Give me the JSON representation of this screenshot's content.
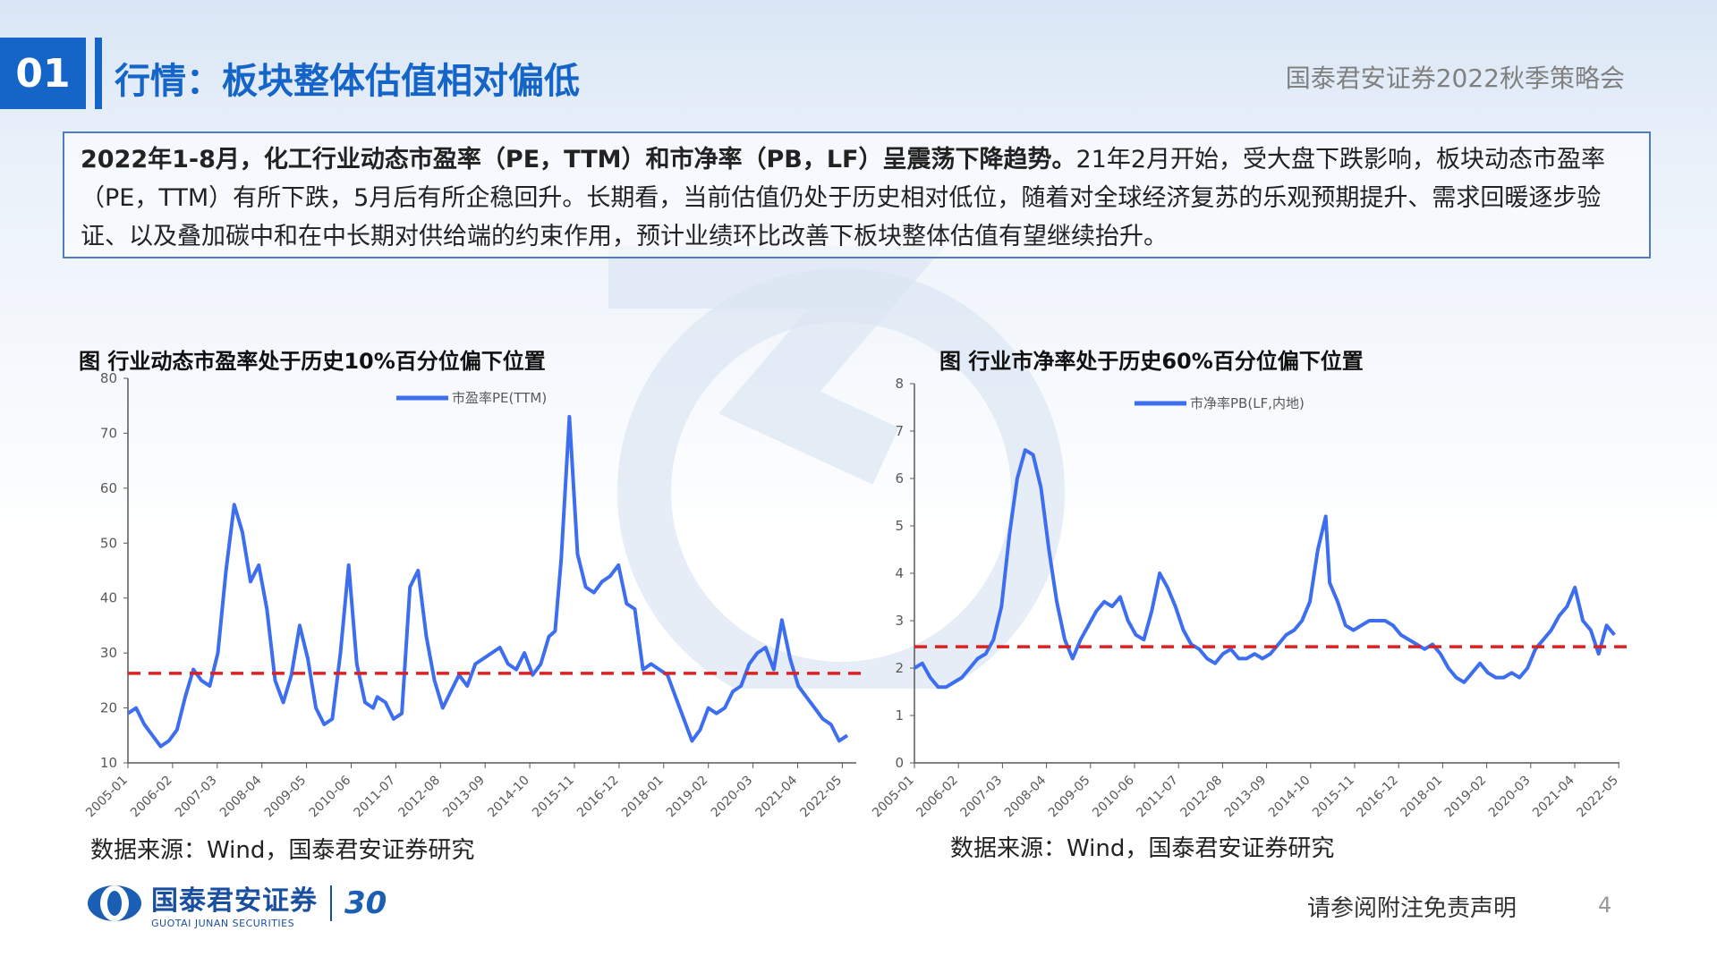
{
  "header": {
    "section_number": "01",
    "title": "行情：板块整体估值相对偏低",
    "conference": "国泰君安证券2022秋季策略会"
  },
  "summary": {
    "bold_text": "2022年1-8月，化工行业动态市盈率（PE，TTM）和市净率（PB，LF）呈震荡下降趋势。",
    "text": "21年2月开始，受大盘下跌影响，板块动态市盈率（PE，TTM）有所下跌，5月后有所企稳回升。长期看，当前估值仍处于历史相对低位，随着对全球经济复苏的乐观预期提升、需求回暖逐步验证、以及叠加碳中和在中长期对供给端的约束作用，预计业绩环比改善下板块整体估值有望继续抬升。"
  },
  "chart_data": [
    {
      "type": "line",
      "title": "图  行业动态市盈率处于历史10%百分位偏下位置",
      "source": "数据来源：Wind，国泰君安证券研究",
      "x_tick_labels": [
        "2005-01",
        "2006-02",
        "2007-03",
        "2008-04",
        "2009-05",
        "2010-06",
        "2011-07",
        "2012-08",
        "2013-09",
        "2014-10",
        "2015-11",
        "2016-12",
        "2018-01",
        "2019-02",
        "2020-03",
        "2021-04",
        "2022-05"
      ],
      "ylim": [
        10,
        80
      ],
      "y_ticks": [
        10,
        20,
        30,
        40,
        50,
        60,
        70,
        80
      ],
      "series": [
        {
          "name": "市盈率PE(TTM)",
          "color": "#3d6ef0",
          "x": [
            2005.0,
            2005.2,
            2005.4,
            2005.6,
            2005.8,
            2006.0,
            2006.2,
            2006.4,
            2006.6,
            2006.8,
            2007.0,
            2007.2,
            2007.4,
            2007.6,
            2007.8,
            2008.0,
            2008.2,
            2008.4,
            2008.6,
            2008.8,
            2009.0,
            2009.2,
            2009.4,
            2009.6,
            2009.8,
            2010.0,
            2010.2,
            2010.4,
            2010.6,
            2010.8,
            2011.0,
            2011.1,
            2011.3,
            2011.5,
            2011.7,
            2011.9,
            2012.1,
            2012.3,
            2012.5,
            2012.7,
            2012.9,
            2013.1,
            2013.3,
            2013.5,
            2013.7,
            2013.9,
            2014.1,
            2014.3,
            2014.5,
            2014.7,
            2014.9,
            2015.1,
            2015.3,
            2015.45,
            2015.6,
            2015.8,
            2016.0,
            2016.2,
            2016.4,
            2016.6,
            2016.8,
            2017.0,
            2017.2,
            2017.4,
            2017.6,
            2017.8,
            2018.0,
            2018.2,
            2018.4,
            2018.6,
            2018.8,
            2019.0,
            2019.2,
            2019.4,
            2019.6,
            2019.8,
            2020.0,
            2020.2,
            2020.4,
            2020.6,
            2020.8,
            2021.0,
            2021.2,
            2021.4,
            2021.6,
            2021.8,
            2022.0,
            2022.2,
            2022.4,
            2022.6
          ],
          "values": [
            19,
            20,
            17,
            15,
            13,
            14,
            16,
            22,
            27,
            25,
            24,
            30,
            45,
            57,
            52,
            43,
            46,
            38,
            25,
            21,
            26,
            35,
            29,
            20,
            17,
            18,
            30,
            46,
            28,
            21,
            20,
            22,
            21,
            18,
            19,
            42,
            45,
            33,
            25,
            20,
            23,
            26,
            24,
            28,
            29,
            30,
            31,
            28,
            27,
            30,
            26,
            28,
            33,
            34,
            47,
            73,
            48,
            42,
            41,
            43,
            44,
            46,
            39,
            38,
            27,
            28,
            27,
            26,
            22,
            18,
            14,
            16,
            20,
            19,
            20,
            23,
            24,
            28,
            30,
            31,
            27,
            36,
            29,
            24,
            22,
            20,
            18,
            17,
            14,
            15
          ]
        }
      ],
      "reference_line": {
        "value": 26.3,
        "color": "#e02020",
        "style": "dashed"
      },
      "legend_position": "top-center"
    },
    {
      "type": "line",
      "title": "图  行业市净率处于历史60%百分位偏下位置",
      "source": "数据来源：Wind，国泰君安证券研究",
      "x_tick_labels": [
        "2005-01",
        "2006-02",
        "2007-03",
        "2008-04",
        "2009-05",
        "2010-06",
        "2011-07",
        "2012-08",
        "2013-09",
        "2014-10",
        "2015-11",
        "2016-12",
        "2018-01",
        "2019-02",
        "2020-03",
        "2021-04",
        "2022-05"
      ],
      "ylim": [
        0,
        8
      ],
      "y_ticks": [
        0,
        1,
        2,
        3,
        4,
        5,
        6,
        7,
        8
      ],
      "series": [
        {
          "name": "市净率PB(LF,内地)",
          "color": "#3d6ef0",
          "x": [
            2005.0,
            2005.2,
            2005.4,
            2005.6,
            2005.8,
            2006.0,
            2006.2,
            2006.4,
            2006.6,
            2006.8,
            2007.0,
            2007.2,
            2007.4,
            2007.6,
            2007.8,
            2008.0,
            2008.2,
            2008.4,
            2008.6,
            2008.8,
            2009.0,
            2009.2,
            2009.4,
            2009.6,
            2009.8,
            2010.0,
            2010.2,
            2010.4,
            2010.6,
            2010.8,
            2011.0,
            2011.2,
            2011.4,
            2011.6,
            2011.8,
            2012.0,
            2012.2,
            2012.4,
            2012.6,
            2012.8,
            2013.0,
            2013.2,
            2013.4,
            2013.6,
            2013.8,
            2014.0,
            2014.2,
            2014.4,
            2014.6,
            2014.8,
            2015.0,
            2015.2,
            2015.4,
            2015.5,
            2015.7,
            2015.9,
            2016.1,
            2016.3,
            2016.5,
            2016.7,
            2016.9,
            2017.1,
            2017.3,
            2017.5,
            2017.7,
            2017.9,
            2018.1,
            2018.3,
            2018.5,
            2018.7,
            2018.9,
            2019.1,
            2019.3,
            2019.5,
            2019.7,
            2019.9,
            2020.1,
            2020.3,
            2020.5,
            2020.7,
            2020.9,
            2021.1,
            2021.3,
            2021.5,
            2021.7,
            2021.9,
            2022.1,
            2022.3,
            2022.5,
            2022.7
          ],
          "values": [
            2.0,
            2.1,
            1.8,
            1.6,
            1.6,
            1.7,
            1.8,
            2.0,
            2.2,
            2.3,
            2.6,
            3.3,
            4.8,
            6.0,
            6.6,
            6.5,
            5.8,
            4.5,
            3.4,
            2.6,
            2.2,
            2.6,
            2.9,
            3.2,
            3.4,
            3.3,
            3.5,
            3.0,
            2.7,
            2.6,
            3.2,
            4.0,
            3.7,
            3.3,
            2.8,
            2.5,
            2.4,
            2.2,
            2.1,
            2.3,
            2.4,
            2.2,
            2.2,
            2.3,
            2.2,
            2.3,
            2.5,
            2.7,
            2.8,
            3.0,
            3.4,
            4.5,
            5.2,
            3.8,
            3.4,
            2.9,
            2.8,
            2.9,
            3.0,
            3.0,
            3.0,
            2.9,
            2.7,
            2.6,
            2.5,
            2.4,
            2.5,
            2.3,
            2.0,
            1.8,
            1.7,
            1.9,
            2.1,
            1.9,
            1.8,
            1.8,
            1.9,
            1.8,
            2.0,
            2.4,
            2.6,
            2.8,
            3.1,
            3.3,
            3.7,
            3.0,
            2.8,
            2.3,
            2.9,
            2.7
          ]
        }
      ],
      "reference_line": {
        "value": 2.45,
        "color": "#e02020",
        "style": "dashed"
      },
      "legend_position": "top-center"
    }
  ],
  "footer": {
    "logo_cn": "国泰君安证券",
    "logo_en": "GUOTAI JUNAN SECURITIES",
    "logo_30": "30",
    "disclaimer": "请参阅附注免责声明",
    "page_number": "4"
  }
}
